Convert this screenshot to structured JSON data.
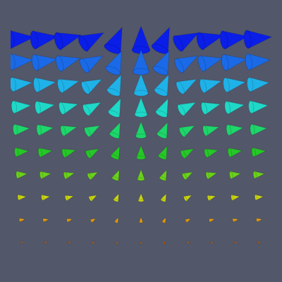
{
  "chart_data": {
    "type": "quiver",
    "tick_labels": false,
    "xlim": [
      -0.5,
      10.5
    ],
    "ylim": [
      -0.5,
      9.5
    ],
    "x": [
      0,
      1,
      2,
      3,
      4,
      5,
      6,
      7,
      8,
      9,
      10
    ],
    "y": [
      9,
      8,
      7,
      6,
      5,
      4,
      3,
      2,
      1,
      0
    ],
    "colors": [
      "#0a1ee8",
      "#1a6ae8",
      "#1fb2e8",
      "#1fd8c8",
      "#1ed66a",
      "#26c828",
      "#6ad21a",
      "#c8d414",
      "#e8a010",
      "#d86a10"
    ],
    "u": [
      [
        1,
        1,
        0.95,
        0.85,
        0.4,
        0,
        0.4,
        0.85,
        0.95,
        1,
        1
      ],
      [
        0.9,
        0.9,
        0.86,
        0.77,
        0.36,
        0,
        0.36,
        0.77,
        0.86,
        0.9,
        0.9
      ],
      [
        0.8,
        0.8,
        0.76,
        0.68,
        0.32,
        0,
        0.32,
        0.68,
        0.76,
        0.8,
        0.8
      ],
      [
        0.7,
        0.7,
        0.67,
        0.6,
        0.28,
        0,
        0.28,
        0.6,
        0.67,
        0.7,
        0.7
      ],
      [
        0.6,
        0.6,
        0.57,
        0.51,
        0.24,
        0,
        0.24,
        0.51,
        0.57,
        0.6,
        0.6
      ],
      [
        0.5,
        0.5,
        0.48,
        0.43,
        0.2,
        0,
        0.2,
        0.43,
        0.48,
        0.5,
        0.5
      ],
      [
        0.4,
        0.4,
        0.38,
        0.34,
        0.16,
        0,
        0.16,
        0.34,
        0.38,
        0.4,
        0.4
      ],
      [
        0.3,
        0.3,
        0.29,
        0.26,
        0.12,
        0,
        0.12,
        0.26,
        0.29,
        0.3,
        0.3
      ],
      [
        0.2,
        0.2,
        0.19,
        0.17,
        0.08,
        0,
        0.08,
        0.17,
        0.19,
        0.2,
        0.2
      ],
      [
        0.1,
        0.1,
        0.1,
        0.09,
        0.04,
        0,
        0.04,
        0.09,
        0.1,
        0.1,
        0.1
      ]
    ],
    "v": [
      [
        0.1,
        0.15,
        0.25,
        0.45,
        0.9,
        1,
        0.9,
        0.45,
        0.25,
        0.15,
        0.1
      ],
      [
        0.09,
        0.14,
        0.23,
        0.41,
        0.81,
        0.9,
        0.81,
        0.41,
        0.23,
        0.14,
        0.09
      ],
      [
        0.08,
        0.12,
        0.2,
        0.36,
        0.72,
        0.8,
        0.72,
        0.36,
        0.2,
        0.12,
        0.08
      ],
      [
        0.07,
        0.11,
        0.18,
        0.32,
        0.63,
        0.7,
        0.63,
        0.32,
        0.18,
        0.11,
        0.07
      ],
      [
        0.06,
        0.09,
        0.15,
        0.27,
        0.54,
        0.6,
        0.54,
        0.27,
        0.15,
        0.09,
        0.06
      ],
      [
        0.05,
        0.08,
        0.13,
        0.23,
        0.45,
        0.5,
        0.45,
        0.23,
        0.13,
        0.08,
        0.05
      ],
      [
        0.04,
        0.06,
        0.1,
        0.18,
        0.36,
        0.4,
        0.36,
        0.18,
        0.1,
        0.06,
        0.04
      ],
      [
        0.03,
        0.05,
        0.08,
        0.14,
        0.27,
        0.3,
        0.27,
        0.14,
        0.08,
        0.05,
        0.03
      ],
      [
        0.02,
        0.03,
        0.05,
        0.09,
        0.18,
        0.2,
        0.18,
        0.09,
        0.05,
        0.03,
        0.02
      ],
      [
        0.01,
        0.02,
        0.03,
        0.05,
        0.09,
        0.1,
        0.09,
        0.05,
        0.03,
        0.02,
        0.01
      ]
    ]
  }
}
